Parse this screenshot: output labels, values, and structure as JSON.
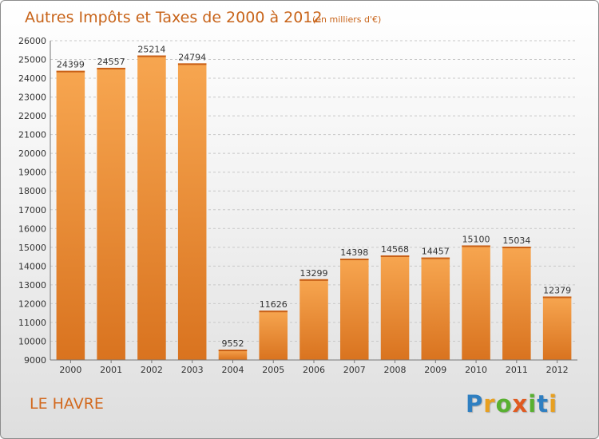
{
  "chart_data": {
    "type": "bar",
    "title": "Autres Impôts et Taxes de 2000 à 2012",
    "subtitle": "(en milliers d'€)",
    "categories": [
      "2000",
      "2001",
      "2002",
      "2003",
      "2004",
      "2005",
      "2006",
      "2007",
      "2008",
      "2009",
      "2010",
      "2011",
      "2012"
    ],
    "values": [
      24399,
      24557,
      25214,
      24794,
      9552,
      11626,
      13299,
      14398,
      14568,
      14457,
      15100,
      15034,
      12379
    ],
    "ylim": [
      9000,
      26000
    ],
    "yticks": [
      9000,
      10000,
      11000,
      12000,
      13000,
      14000,
      15000,
      16000,
      17000,
      18000,
      19000,
      20000,
      21000,
      22000,
      23000,
      24000,
      25000,
      26000
    ],
    "grid": true,
    "bar_color": "#f4a04c",
    "bar_color_dark": "#d2691e"
  },
  "footer": {
    "place": "LE HAVRE",
    "logo": {
      "letters": [
        "P",
        "r",
        "o",
        "x",
        "i",
        "t",
        "i"
      ],
      "colors": [
        "#2f7fc1",
        "#e8a020",
        "#58b030",
        "#e05a20",
        "#58b030",
        "#2f7fc1",
        "#e8a020"
      ]
    }
  }
}
